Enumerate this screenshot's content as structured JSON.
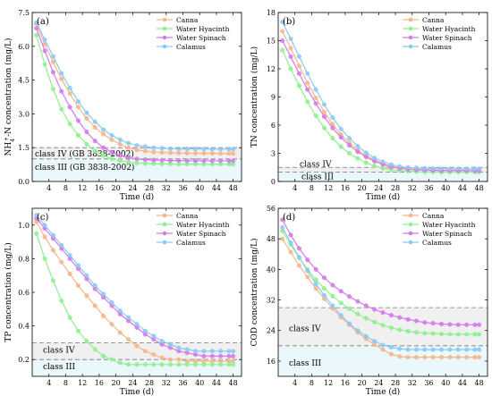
{
  "chart_data": [
    {
      "type": "line",
      "panel": "(a)",
      "ylabel_main": "NH",
      "ylabel_sub": "4",
      "ylabel_sup": "+",
      "ylabel_rest": "-N concentration (mg/L)",
      "xlabel": "Time (d)",
      "xlim": [
        0,
        50
      ],
      "ylim": [
        0,
        7.5
      ],
      "xticks": [
        4,
        8,
        12,
        16,
        20,
        24,
        28,
        32,
        36,
        40,
        44,
        48
      ],
      "yticks": [
        0.0,
        1.5,
        3.0,
        4.5,
        6.0,
        7.5
      ],
      "ytick_labels": [
        "0.0",
        "1.5",
        "3.0",
        "4.5",
        "6.0",
        "7.5"
      ],
      "x": [
        1,
        3,
        5,
        7,
        9,
        11,
        13,
        15,
        17,
        19,
        21,
        23,
        25,
        27,
        29,
        31,
        33,
        35,
        37,
        39,
        41,
        43,
        45,
        47,
        48
      ],
      "series": [
        {
          "name": "Canna",
          "values": [
            7.0,
            6.1,
            5.3,
            4.55,
            3.9,
            3.3,
            2.8,
            2.4,
            2.1,
            1.85,
            1.65,
            1.5,
            1.4,
            1.35,
            1.3,
            1.28,
            1.27,
            1.26,
            1.25,
            1.25,
            1.25,
            1.25,
            1.24,
            1.24,
            1.24
          ]
        },
        {
          "name": "Water Hyacinth",
          "values": [
            6.5,
            5.2,
            4.1,
            3.2,
            2.55,
            2.05,
            1.65,
            1.35,
            1.15,
            1.0,
            0.92,
            0.86,
            0.82,
            0.8,
            0.79,
            0.78,
            0.78,
            0.77,
            0.77,
            0.77,
            0.77,
            0.77,
            0.77,
            0.77,
            0.77
          ]
        },
        {
          "name": "Water Spinach",
          "values": [
            6.8,
            5.8,
            4.85,
            4.0,
            3.3,
            2.7,
            2.2,
            1.8,
            1.5,
            1.3,
            1.15,
            1.05,
            1.0,
            0.97,
            0.95,
            0.94,
            0.93,
            0.93,
            0.92,
            0.92,
            0.92,
            0.92,
            0.92,
            0.92,
            0.92
          ]
        },
        {
          "name": "Calamus",
          "values": [
            7.05,
            6.3,
            5.55,
            4.8,
            4.15,
            3.55,
            3.05,
            2.65,
            2.3,
            2.05,
            1.85,
            1.7,
            1.6,
            1.55,
            1.5,
            1.48,
            1.46,
            1.45,
            1.45,
            1.44,
            1.44,
            1.44,
            1.44,
            1.44,
            1.44
          ]
        }
      ],
      "thresholds": [
        {
          "label": "class IV (GB 3838-2002)",
          "value": 1.5
        },
        {
          "label": "class III (GB 3838-2002)",
          "value": 1.0
        }
      ],
      "legend": "top-right"
    },
    {
      "type": "line",
      "panel": "(b)",
      "ylabel": "TN concentration (mg/L)",
      "xlabel": "Time (d)",
      "xlim": [
        0,
        50
      ],
      "ylim": [
        0,
        18
      ],
      "xticks": [
        4,
        8,
        12,
        16,
        20,
        24,
        28,
        32,
        36,
        40,
        44,
        48
      ],
      "yticks": [
        0,
        3,
        6,
        9,
        12,
        15,
        18
      ],
      "ytick_labels": [
        "0",
        "3",
        "6",
        "9",
        "12",
        "15",
        "18"
      ],
      "x": [
        1,
        3,
        5,
        7,
        9,
        11,
        13,
        15,
        17,
        19,
        21,
        23,
        25,
        27,
        29,
        31,
        33,
        35,
        37,
        39,
        41,
        43,
        45,
        47,
        48
      ],
      "series": [
        {
          "name": "Canna",
          "values": [
            16.0,
            14.2,
            12.3,
            10.5,
            8.9,
            7.4,
            6.1,
            5.0,
            4.1,
            3.35,
            2.75,
            2.3,
            1.9,
            1.65,
            1.45,
            1.35,
            1.3,
            1.25,
            1.22,
            1.2,
            1.2,
            1.2,
            1.2,
            1.2,
            1.2
          ]
        },
        {
          "name": "Water Hyacinth",
          "values": [
            14.0,
            12.0,
            10.2,
            8.5,
            7.0,
            5.7,
            4.6,
            3.7,
            3.0,
            2.45,
            2.0,
            1.65,
            1.4,
            1.25,
            1.15,
            1.1,
            1.05,
            1.02,
            1.0,
            1.0,
            1.0,
            1.0,
            1.0,
            1.0,
            1.0
          ]
        },
        {
          "name": "Water Spinach",
          "values": [
            15.0,
            13.3,
            11.5,
            9.8,
            8.3,
            6.9,
            5.7,
            4.7,
            3.85,
            3.15,
            2.6,
            2.15,
            1.8,
            1.55,
            1.4,
            1.3,
            1.25,
            1.2,
            1.18,
            1.15,
            1.15,
            1.15,
            1.15,
            1.15,
            1.15
          ]
        },
        {
          "name": "Calamus",
          "values": [
            17.0,
            15.2,
            13.3,
            11.5,
            9.8,
            8.2,
            6.8,
            5.6,
            4.6,
            3.75,
            3.05,
            2.5,
            2.1,
            1.8,
            1.6,
            1.5,
            1.45,
            1.4,
            1.38,
            1.35,
            1.35,
            1.35,
            1.35,
            1.35,
            1.35
          ]
        }
      ],
      "thresholds": [
        {
          "label": "class IV",
          "value": 1.5
        },
        {
          "label": "class III",
          "value": 1.0
        }
      ],
      "legend": "top-right"
    },
    {
      "type": "line",
      "panel": "(c)",
      "ylabel": "TP concentration (mg/L)",
      "xlabel": "Time (d)",
      "xlim": [
        0,
        50
      ],
      "ylim": [
        0.1,
        1.1
      ],
      "xticks": [
        4,
        8,
        12,
        16,
        20,
        24,
        28,
        32,
        36,
        40,
        44,
        48
      ],
      "yticks": [
        0.2,
        0.4,
        0.6,
        0.8,
        1.0
      ],
      "ytick_labels": [
        "0.2",
        "0.4",
        "0.6",
        "0.8",
        "1.0"
      ],
      "x": [
        1,
        3,
        5,
        7,
        9,
        11,
        13,
        15,
        17,
        19,
        21,
        23,
        25,
        27,
        29,
        31,
        33,
        35,
        37,
        39,
        41,
        43,
        45,
        47,
        48
      ],
      "series": [
        {
          "name": "Canna",
          "values": [
            1.02,
            0.93,
            0.85,
            0.78,
            0.71,
            0.64,
            0.58,
            0.52,
            0.46,
            0.41,
            0.36,
            0.32,
            0.28,
            0.25,
            0.23,
            0.21,
            0.2,
            0.2,
            0.19,
            0.19,
            0.19,
            0.19,
            0.19,
            0.19,
            0.19
          ]
        },
        {
          "name": "Water Hyacinth",
          "values": [
            0.95,
            0.8,
            0.67,
            0.55,
            0.45,
            0.37,
            0.31,
            0.26,
            0.22,
            0.2,
            0.18,
            0.17,
            0.17,
            0.17,
            0.17,
            0.17,
            0.17,
            0.17,
            0.17,
            0.17,
            0.17,
            0.17,
            0.17,
            0.17,
            0.17
          ]
        },
        {
          "name": "Water Spinach",
          "values": [
            1.04,
            0.98,
            0.92,
            0.86,
            0.8,
            0.74,
            0.68,
            0.62,
            0.57,
            0.52,
            0.47,
            0.43,
            0.39,
            0.35,
            0.32,
            0.29,
            0.27,
            0.25,
            0.24,
            0.23,
            0.22,
            0.22,
            0.22,
            0.22,
            0.22
          ]
        },
        {
          "name": "Calamus",
          "values": [
            1.06,
            1.0,
            0.94,
            0.88,
            0.82,
            0.76,
            0.7,
            0.64,
            0.59,
            0.54,
            0.49,
            0.45,
            0.41,
            0.37,
            0.34,
            0.31,
            0.29,
            0.27,
            0.26,
            0.25,
            0.25,
            0.25,
            0.25,
            0.25,
            0.25
          ]
        }
      ],
      "thresholds": [
        {
          "label": "class IV",
          "value": 0.3
        },
        {
          "label": "class III",
          "value": 0.2
        }
      ],
      "legend": "top-right"
    },
    {
      "type": "line",
      "panel": "(d)",
      "ylabel": "COD concentration (mg/L)",
      "xlabel": "Time (d)",
      "xlim": [
        0,
        50
      ],
      "ylim": [
        12,
        56
      ],
      "xticks": [
        4,
        8,
        12,
        16,
        20,
        24,
        28,
        32,
        36,
        40,
        44,
        48
      ],
      "yticks": [
        16,
        24,
        32,
        40,
        48,
        56
      ],
      "ytick_labels": [
        "16",
        "24",
        "32",
        "40",
        "48",
        "56"
      ],
      "x": [
        1,
        3,
        5,
        7,
        9,
        11,
        13,
        15,
        17,
        19,
        21,
        23,
        25,
        27,
        29,
        31,
        33,
        35,
        37,
        39,
        41,
        43,
        45,
        47,
        48
      ],
      "series": [
        {
          "name": "Canna",
          "values": [
            48.0,
            44.5,
            41.0,
            38.0,
            35.0,
            32.3,
            29.8,
            27.5,
            25.5,
            23.5,
            21.8,
            20.3,
            19.0,
            17.8,
            17.2,
            17.0,
            17.0,
            17.0,
            17.0,
            17.0,
            17.0,
            17.0,
            17.0,
            17.0,
            17.0
          ]
        },
        {
          "name": "Water Hyacinth",
          "values": [
            50.0,
            46.5,
            43.0,
            40.0,
            37.3,
            35.0,
            33.0,
            31.2,
            29.7,
            28.3,
            27.2,
            26.2,
            25.4,
            24.7,
            24.2,
            23.8,
            23.5,
            23.3,
            23.2,
            23.1,
            23.0,
            23.0,
            23.0,
            23.0,
            23.0
          ]
        },
        {
          "name": "Water Spinach",
          "values": [
            53.0,
            49.0,
            45.5,
            42.5,
            40.0,
            37.8,
            35.9,
            34.3,
            32.9,
            31.6,
            30.5,
            29.5,
            28.7,
            28.0,
            27.4,
            26.9,
            26.5,
            26.1,
            25.9,
            25.7,
            25.6,
            25.5,
            25.5,
            25.5,
            25.5
          ]
        },
        {
          "name": "Calamus",
          "values": [
            51.0,
            47.0,
            43.2,
            39.6,
            36.2,
            33.2,
            30.5,
            28.0,
            25.8,
            24.0,
            22.5,
            21.2,
            20.2,
            19.6,
            19.2,
            19.0,
            19.0,
            19.0,
            19.0,
            19.0,
            19.0,
            19.0,
            19.0,
            19.0,
            19.0
          ]
        }
      ],
      "thresholds": [
        {
          "label": "class IV",
          "value": 30
        },
        {
          "label": "class III",
          "value": 20
        }
      ],
      "legend": "top-right"
    }
  ],
  "colors": {
    "Canna": "#f5b68a",
    "Water Hyacinth": "#8ef08e",
    "Water Spinach": "#d57ae8",
    "Calamus": "#8cc9f5",
    "class_iv_band": "#f0f0f0",
    "class_iii_band": "#eaf7fb",
    "threshold_line": "#7a7a7a"
  }
}
